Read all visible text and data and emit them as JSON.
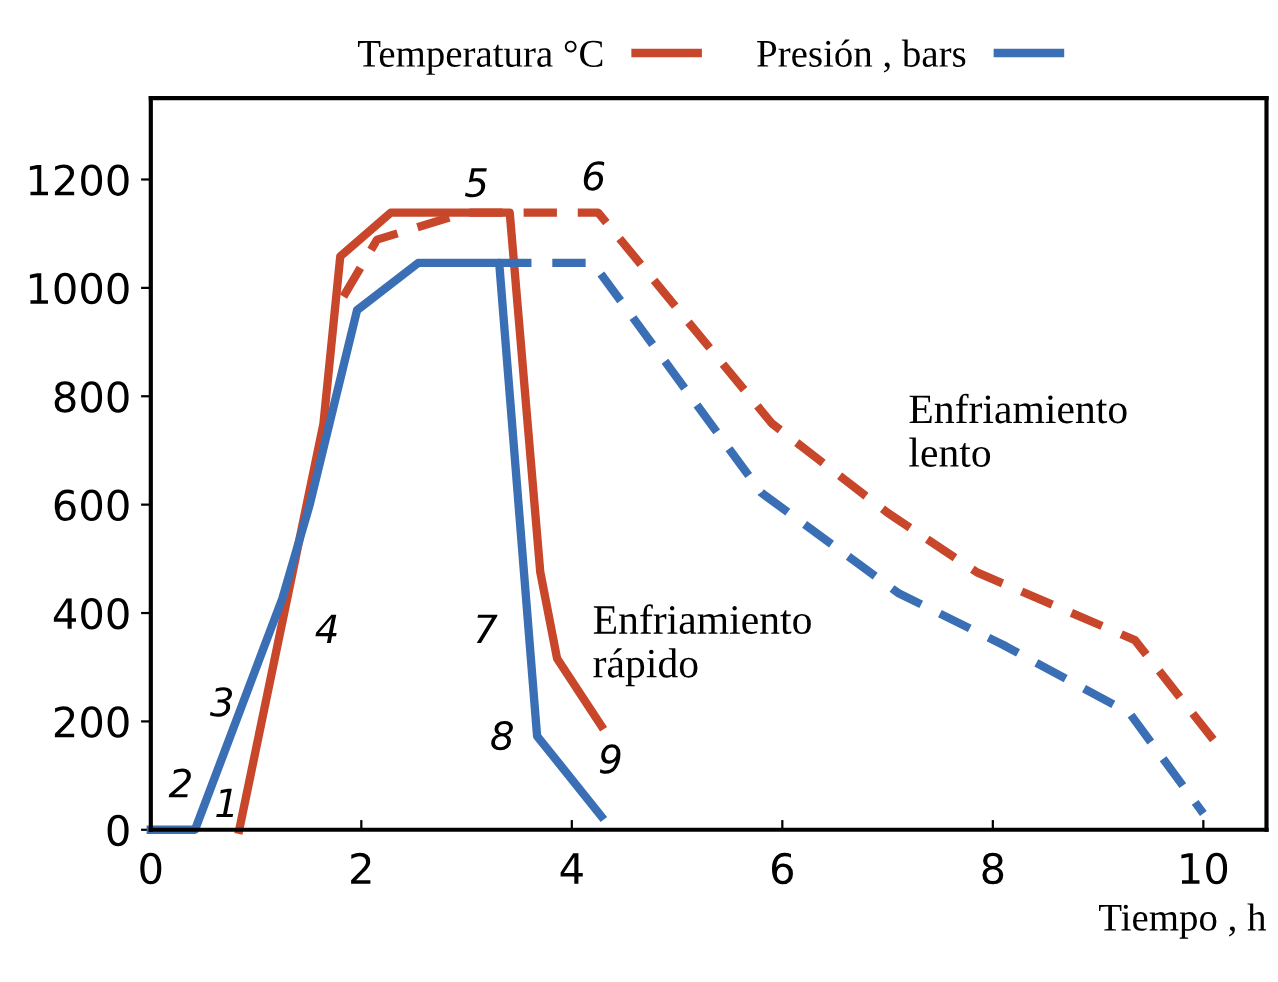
{
  "chart_data": {
    "type": "line",
    "xlabel": "Tiempo , h",
    "xlim": [
      0,
      10.6
    ],
    "ylim": [
      0,
      1350
    ],
    "xticks": [
      0,
      2,
      4,
      6,
      8,
      10
    ],
    "yticks": [
      0,
      200,
      400,
      600,
      800,
      1000,
      1200
    ],
    "grid": false,
    "legend": "top",
    "marker": "none",
    "series": [
      {
        "name": "Temperatura °C",
        "color": "#c8472b",
        "line_style": "solid",
        "x": [
          0.84,
          1.64,
          1.8,
          2.28,
          3.41,
          3.7,
          3.86,
          4.28
        ],
        "values": [
          0,
          749,
          1058,
          1139,
          1139,
          476,
          316,
          192
        ]
      },
      {
        "name": "Presión , bars",
        "color": "#3a6fb5",
        "line_style": "solid",
        "x": [
          0,
          0.42,
          1.25,
          1.51,
          1.96,
          2.54,
          3.31,
          3.67,
          4.28
        ],
        "values": [
          0,
          0,
          427,
          600,
          959,
          1046,
          1046,
          173,
          25
        ]
      },
      {
        "color": "#c8472b",
        "line_style": "dashed",
        "x": [
          1.83,
          2.15,
          2.99,
          4.25,
          5.9,
          7.0,
          7.85,
          9.35,
          10.1
        ],
        "values": [
          984,
          1089,
          1139,
          1139,
          750,
          585,
          475,
          350,
          165
        ]
      },
      {
        "color": "#3a6fb5",
        "line_style": "dashed",
        "x": [
          3.3,
          4.2,
          5.8,
          7.1,
          8.1,
          9.3,
          10.0
        ],
        "values": [
          1046,
          1046,
          622,
          437,
          341,
          215,
          30
        ]
      }
    ],
    "annotations": [
      "1",
      "2",
      "3",
      "4",
      "5",
      "6",
      "7",
      "8",
      "9",
      "Enfriamiento\nrápido",
      "Enfriamiento\nlento"
    ]
  }
}
